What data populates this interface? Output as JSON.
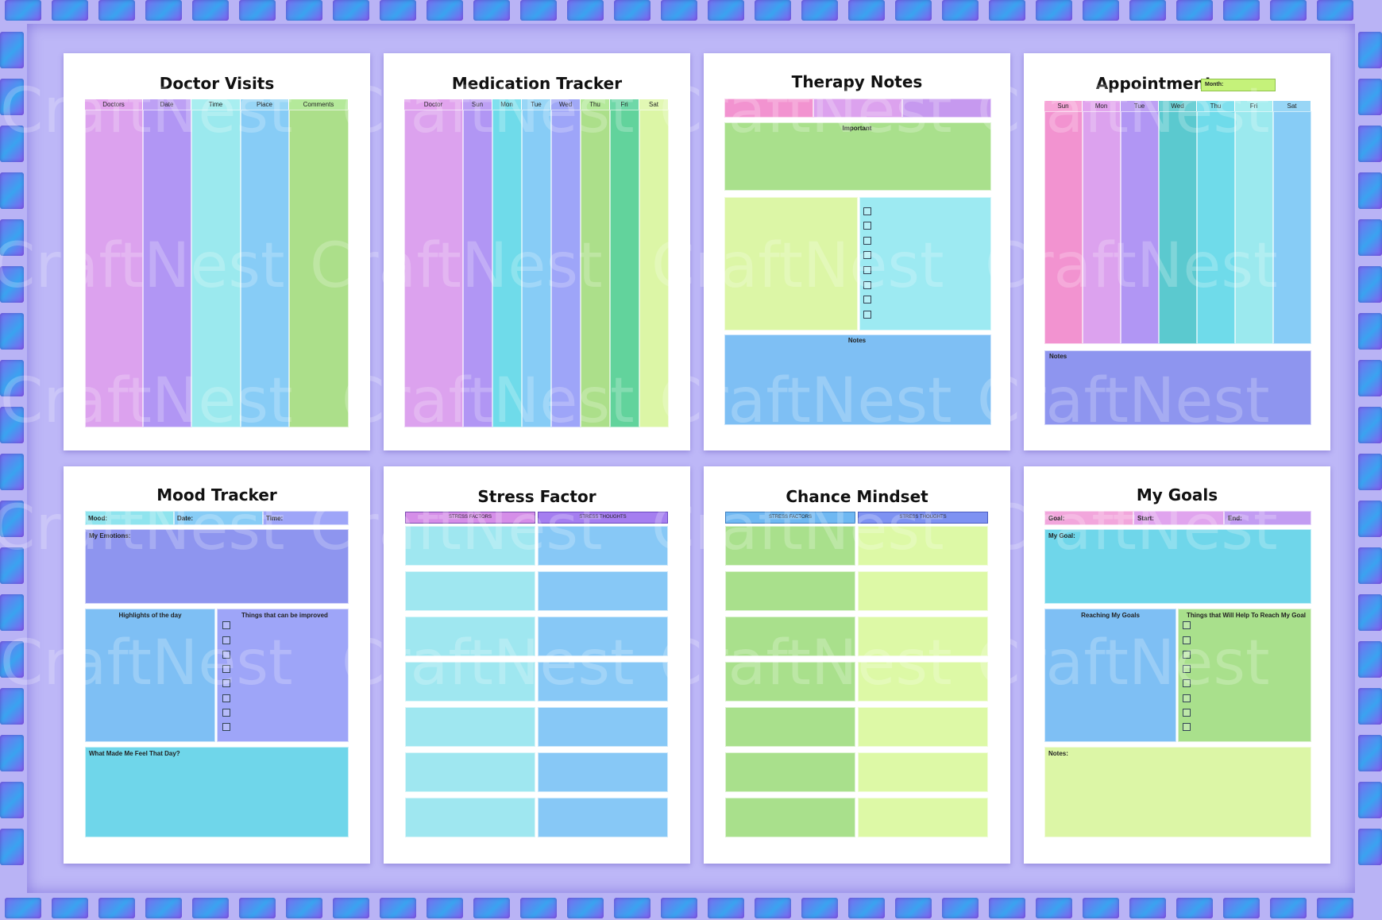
{
  "watermark": "CraftNest",
  "colors": {
    "background": "#bdb7f7",
    "frame_tile": "#6a74f0",
    "page": "#ffffff"
  },
  "pages": {
    "doctor_visits": {
      "title": "Doctor Visits",
      "columns": [
        "Doctors",
        "Date",
        "Time",
        "Place",
        "Comments"
      ]
    },
    "medication_tracker": {
      "title": "Medication Tracker",
      "columns": [
        "Doctor",
        "Sun",
        "Mon",
        "Tue",
        "Wed",
        "Thu",
        "Fri",
        "Sat"
      ]
    },
    "therapy_notes": {
      "title": "Therapy Notes",
      "important": "Important",
      "notes": "Notes"
    },
    "appointments": {
      "title": "Appointments",
      "month": "Month:",
      "days": [
        "Sun",
        "Mon",
        "Tue",
        "Wed",
        "Thu",
        "Fri",
        "Sat"
      ],
      "notes": "Notes"
    },
    "mood_tracker": {
      "title": "Mood Tracker",
      "mood": "Mood:",
      "date": "Date:",
      "time": "Time:",
      "emotions": "My Emotions:",
      "highlights": "Highlights of the day",
      "improved": "Things that can be improved",
      "feel": "What Made Me Feel That Day?"
    },
    "stress_factor": {
      "title": "Stress Factor",
      "col1": "STRESS FACTORS",
      "col2": "STRESS THOUGHTS"
    },
    "chance_mindset": {
      "title": "Chance Mindset",
      "col1": "STRESS FACTORS",
      "col2": "STRESS THOUGHTS"
    },
    "my_goals": {
      "title": "My Goals",
      "goal": "Goal:",
      "start": "Start:",
      "end": "End:",
      "my_goal": "My Goal:",
      "reaching": "Reaching My Goals",
      "things": "Things that Will Help To Reach My Goal",
      "notes": "Notes:"
    }
  }
}
